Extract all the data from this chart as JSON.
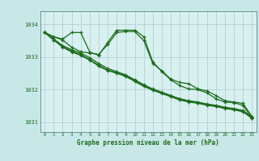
{
  "background_color": "#c8e8e8",
  "plot_background": "#d8f0f0",
  "grid_color": "#aacccc",
  "line_color": "#1a6b1a",
  "xlabel": "Graphe pression niveau de la mer (hPa)",
  "x_ticks": [
    0,
    1,
    2,
    3,
    4,
    5,
    6,
    7,
    8,
    9,
    10,
    11,
    12,
    13,
    14,
    15,
    16,
    17,
    18,
    19,
    20,
    21,
    22,
    23
  ],
  "ylim": [
    1030.7,
    1034.4
  ],
  "y_ticks": [
    1031,
    1032,
    1033,
    1034
  ],
  "series": [
    [
      1033.75,
      1033.62,
      1033.55,
      1033.75,
      1033.75,
      1033.15,
      1033.05,
      1033.45,
      1033.82,
      1033.82,
      1033.82,
      1033.62,
      1032.85,
      1032.55,
      1032.3,
      1032.12,
      1032.02,
      1032.0,
      1031.9,
      1031.72,
      1031.62,
      1031.6,
      1031.52,
      1031.12
    ],
    [
      1033.75,
      1033.52,
      1033.3,
      1033.15,
      1033.05,
      1032.9,
      1032.72,
      1032.58,
      1032.5,
      1032.4,
      1032.25,
      1032.1,
      1031.98,
      1031.88,
      1031.78,
      1031.68,
      1031.62,
      1031.58,
      1031.52,
      1031.48,
      1031.42,
      1031.38,
      1031.32,
      1031.12
    ],
    [
      1033.75,
      1033.52,
      1033.32,
      1033.18,
      1033.08,
      1032.92,
      1032.75,
      1032.6,
      1032.52,
      1032.42,
      1032.28,
      1032.12,
      1032.0,
      1031.9,
      1031.8,
      1031.7,
      1031.64,
      1031.6,
      1031.54,
      1031.5,
      1031.44,
      1031.4,
      1031.34,
      1031.14
    ],
    [
      1033.75,
      1033.55,
      1033.35,
      1033.22,
      1033.12,
      1032.98,
      1032.8,
      1032.65,
      1032.55,
      1032.45,
      1032.3,
      1032.15,
      1032.02,
      1031.92,
      1031.82,
      1031.72,
      1031.66,
      1031.62,
      1031.56,
      1031.52,
      1031.46,
      1031.42,
      1031.36,
      1031.16
    ],
    [
      1033.75,
      1033.62,
      1033.52,
      1033.3,
      1033.16,
      1033.12,
      1033.08,
      1033.38,
      1033.75,
      1033.78,
      1033.78,
      1033.5,
      1032.8,
      1032.58,
      1032.32,
      1032.22,
      1032.18,
      1032.02,
      1031.96,
      1031.82,
      1031.66,
      1031.62,
      1031.58,
      1031.18
    ]
  ]
}
